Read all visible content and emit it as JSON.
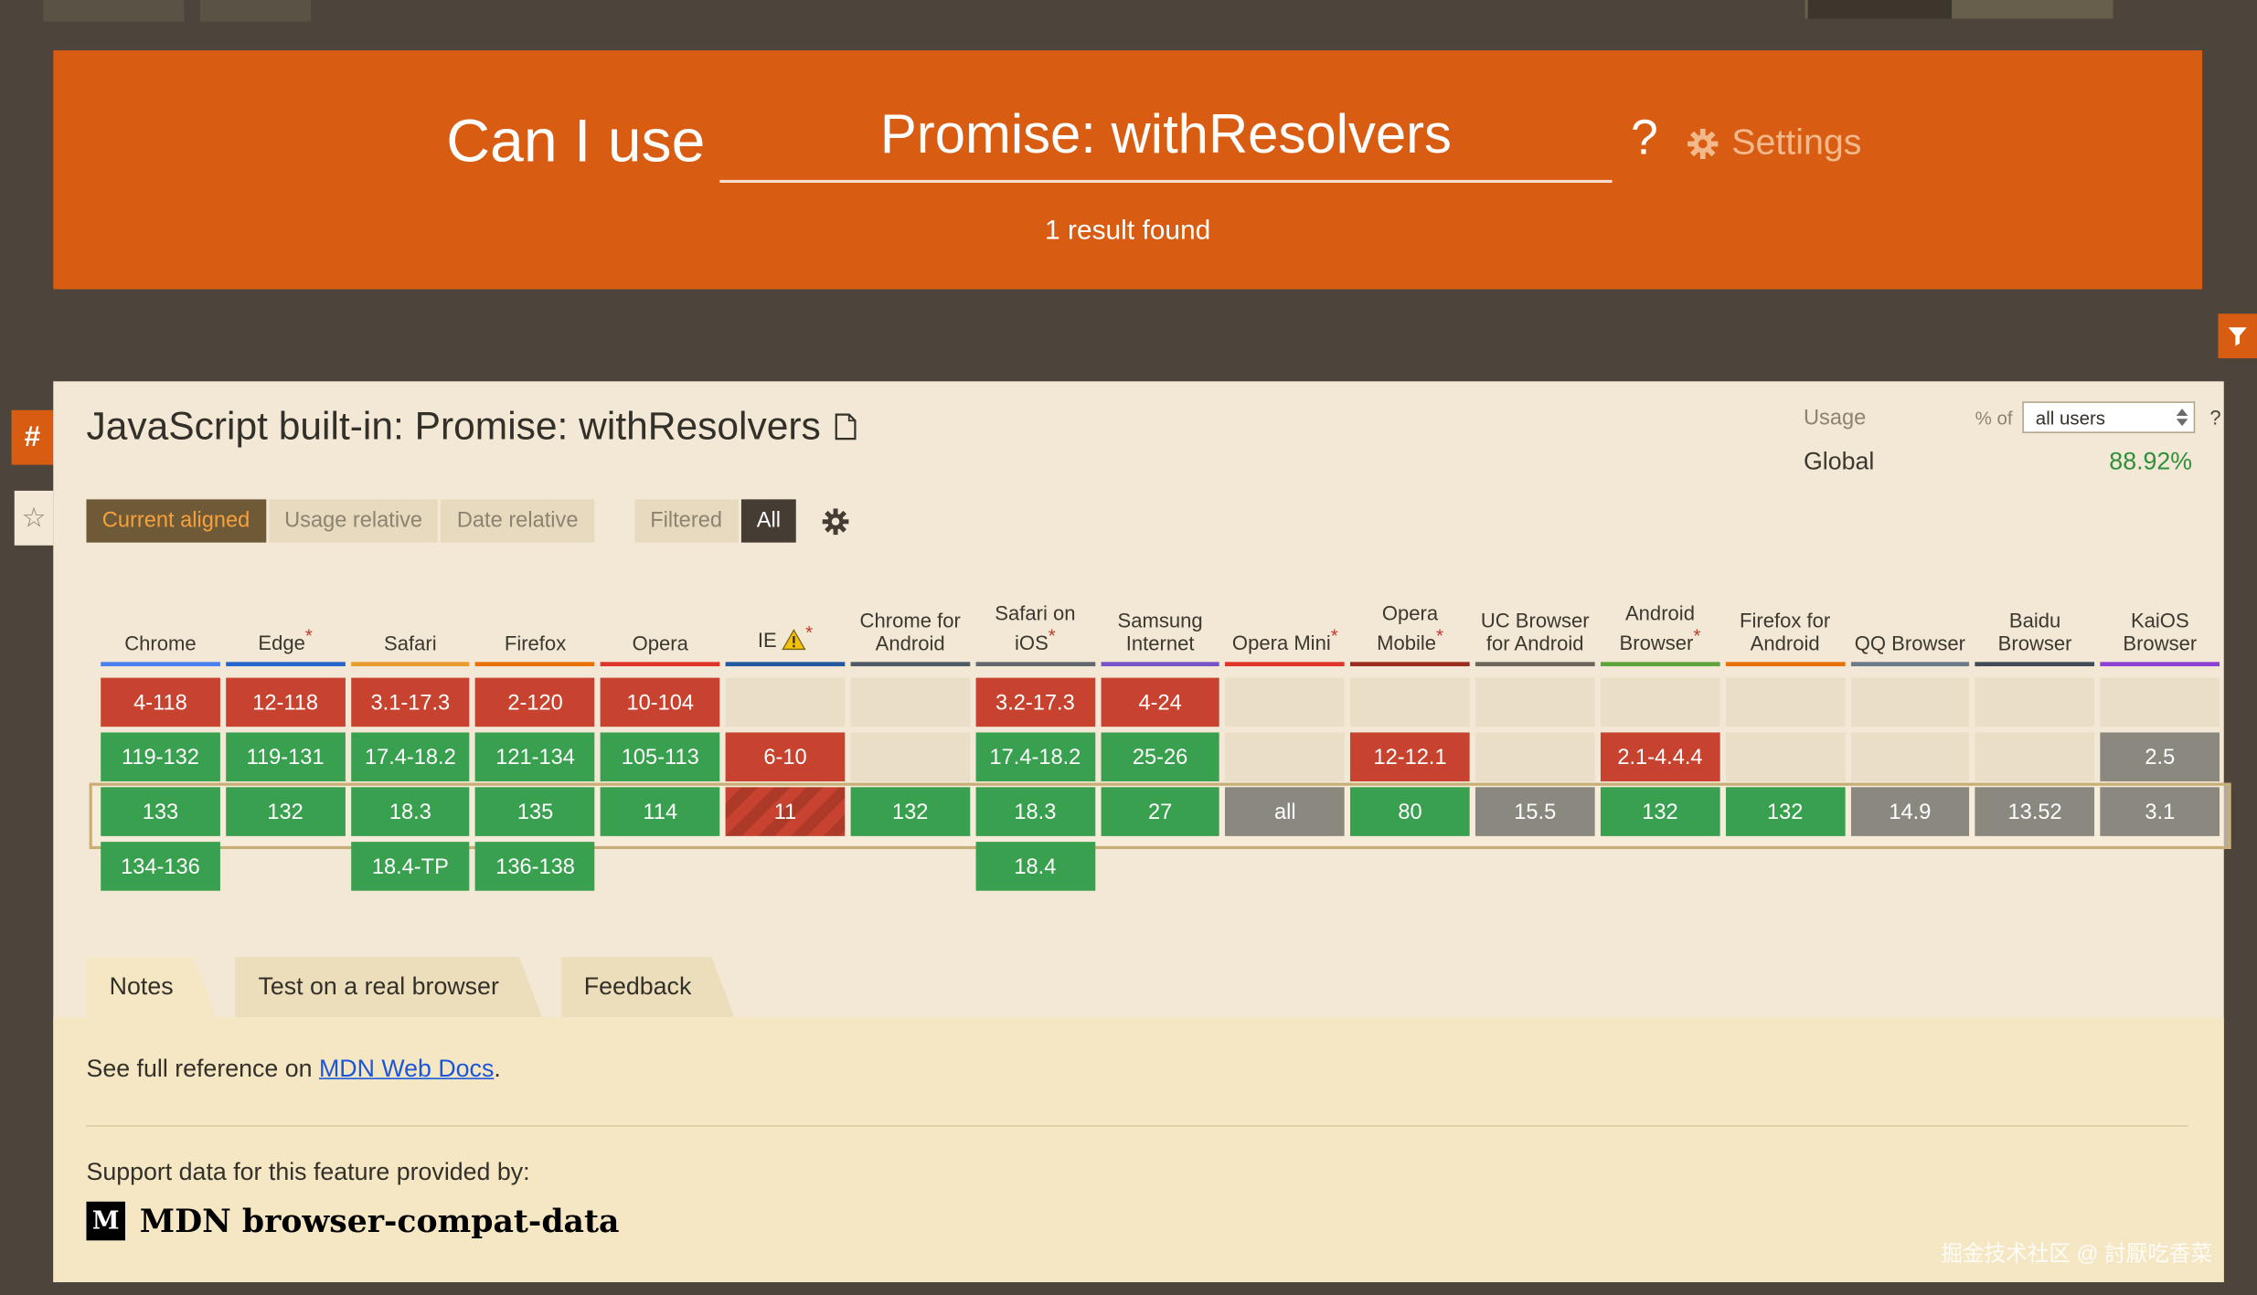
{
  "masthead": {
    "brand": "Can I use",
    "search_value": "Promise: withResolvers",
    "help_label": "?",
    "settings_label": "Settings",
    "result_count": "1 result found"
  },
  "side": {
    "hash": "#",
    "star": "☆"
  },
  "feature": {
    "title": "JavaScript built-in: Promise: withResolvers",
    "usage_label": "Usage",
    "percent_of_label": "% of",
    "usage_selected": "all users",
    "usage_help": "?",
    "global_label": "Global",
    "global_value": "88.92%"
  },
  "controls": {
    "view_buttons": [
      {
        "label": "Current aligned",
        "active": true
      },
      {
        "label": "Usage relative",
        "active": false
      },
      {
        "label": "Date relative",
        "active": false
      }
    ],
    "filtered_label": "Filtered",
    "all_label": "All"
  },
  "support_table": {
    "row_meaning": [
      "past versions",
      "recent past versions",
      "current version",
      "future versions"
    ],
    "browsers": [
      {
        "name": "Chrome",
        "accent": "#4a7ff0",
        "asterisk": false,
        "cells": [
          {
            "t": "4-118",
            "s": "n"
          },
          {
            "t": "119-132",
            "s": "y"
          },
          {
            "t": "133",
            "s": "y"
          },
          {
            "t": "134-136",
            "s": "y"
          }
        ]
      },
      {
        "name": "Edge",
        "accent": "#2565cf",
        "asterisk": true,
        "cells": [
          {
            "t": "12-118",
            "s": "n"
          },
          {
            "t": "119-131",
            "s": "y"
          },
          {
            "t": "132",
            "s": "y"
          },
          {
            "s": "none"
          }
        ]
      },
      {
        "name": "Safari",
        "accent": "#e89c2e",
        "asterisk": false,
        "cells": [
          {
            "t": "3.1-17.3",
            "s": "n"
          },
          {
            "t": "17.4-18.2",
            "s": "y"
          },
          {
            "t": "18.3",
            "s": "y"
          },
          {
            "t": "18.4-TP",
            "s": "y"
          }
        ]
      },
      {
        "name": "Firefox",
        "accent": "#e8710a",
        "asterisk": false,
        "cells": [
          {
            "t": "2-120",
            "s": "n"
          },
          {
            "t": "121-134",
            "s": "y"
          },
          {
            "t": "135",
            "s": "y"
          },
          {
            "t": "136-138",
            "s": "y"
          }
        ]
      },
      {
        "name": "Opera",
        "accent": "#e0342b",
        "asterisk": false,
        "cells": [
          {
            "t": "10-104",
            "s": "n"
          },
          {
            "t": "105-113",
            "s": "y"
          },
          {
            "t": "114",
            "s": "y"
          },
          {
            "s": "none"
          }
        ]
      },
      {
        "name": "IE",
        "accent": "#2258a0",
        "asterisk": true,
        "warning": true,
        "cells": [
          {
            "s": "e"
          },
          {
            "t": "6-10",
            "s": "n"
          },
          {
            "t": "11",
            "s": "nh"
          },
          {
            "s": "none"
          }
        ]
      },
      {
        "name": "Chrome for Android",
        "accent": "#4e5a66",
        "asterisk": false,
        "cells": [
          {
            "s": "e"
          },
          {
            "s": "e"
          },
          {
            "t": "132",
            "s": "y"
          },
          {
            "s": "none"
          }
        ]
      },
      {
        "name": "Safari on iOS",
        "accent": "#62686d",
        "asterisk": true,
        "cells": [
          {
            "t": "3.2-17.3",
            "s": "n"
          },
          {
            "t": "17.4-18.2",
            "s": "y"
          },
          {
            "t": "18.3",
            "s": "y"
          },
          {
            "t": "18.4",
            "s": "y"
          }
        ]
      },
      {
        "name": "Samsung Internet",
        "accent": "#7a52c9",
        "asterisk": false,
        "cells": [
          {
            "t": "4-24",
            "s": "n"
          },
          {
            "t": "25-26",
            "s": "y"
          },
          {
            "t": "27",
            "s": "y"
          },
          {
            "s": "none"
          }
        ]
      },
      {
        "name": "Opera Mini",
        "accent": "#e0342b",
        "asterisk": true,
        "cells": [
          {
            "s": "e"
          },
          {
            "s": "e"
          },
          {
            "t": "all",
            "s": "u"
          },
          {
            "s": "none"
          }
        ]
      },
      {
        "name": "Opera Mobile",
        "accent": "#9c2b20",
        "asterisk": true,
        "cells": [
          {
            "s": "e"
          },
          {
            "t": "12-12.1",
            "s": "n"
          },
          {
            "t": "80",
            "s": "y"
          },
          {
            "s": "none"
          }
        ]
      },
      {
        "name": "UC Browser for Android",
        "accent": "#6d655a",
        "asterisk": false,
        "cells": [
          {
            "s": "e"
          },
          {
            "s": "e"
          },
          {
            "t": "15.5",
            "s": "u"
          },
          {
            "s": "none"
          }
        ]
      },
      {
        "name": "Android Browser",
        "accent": "#5fa33c",
        "asterisk": true,
        "cells": [
          {
            "s": "e"
          },
          {
            "t": "2.1-4.4.4",
            "s": "n"
          },
          {
            "t": "132",
            "s": "y"
          },
          {
            "s": "none"
          }
        ]
      },
      {
        "name": "Firefox for Android",
        "accent": "#e8710a",
        "asterisk": false,
        "cells": [
          {
            "s": "e"
          },
          {
            "s": "e"
          },
          {
            "t": "132",
            "s": "y"
          },
          {
            "s": "none"
          }
        ]
      },
      {
        "name": "QQ Browser",
        "accent": "#6b7b8a",
        "asterisk": false,
        "cells": [
          {
            "s": "e"
          },
          {
            "s": "e"
          },
          {
            "t": "14.9",
            "s": "u"
          },
          {
            "s": "none"
          }
        ]
      },
      {
        "name": "Baidu Browser",
        "accent": "#414b57",
        "asterisk": false,
        "cells": [
          {
            "s": "e"
          },
          {
            "s": "e"
          },
          {
            "t": "13.52",
            "s": "u"
          },
          {
            "s": "none"
          }
        ]
      },
      {
        "name": "KaiOS Browser",
        "accent": "#8b41d4",
        "asterisk": false,
        "cells": [
          {
            "s": "e"
          },
          {
            "t": "2.5",
            "s": "u"
          },
          {
            "t": "3.1",
            "s": "u"
          },
          {
            "s": "none"
          }
        ]
      }
    ]
  },
  "tabs": [
    {
      "label": "Notes",
      "active": true
    },
    {
      "label": "Test on a real browser",
      "active": false
    },
    {
      "label": "Feedback",
      "active": false
    }
  ],
  "notes": {
    "reference_prefix": "See full reference on ",
    "reference_link": "MDN Web Docs",
    "reference_suffix": ".",
    "provided_by": "Support data for this feature provided by:",
    "provider_logo": "M",
    "provider_name": "MDN browser-compat-data"
  },
  "watermark": "掘金技术社区 @ 討厭吃香菜",
  "colors": {
    "header_bg": "#d85c11",
    "panel_bg": "#f2e8d5",
    "notes_bg": "#f5e7c4",
    "supported_green": "#38a04e",
    "unsupported_red": "#c7432f",
    "unknown_gray": "#8a887f",
    "active_button_text": "#f7a13d",
    "global_value_green": "#2f8f3b",
    "link_blue": "#1a56db",
    "asterisk_red": "#c0392b"
  }
}
